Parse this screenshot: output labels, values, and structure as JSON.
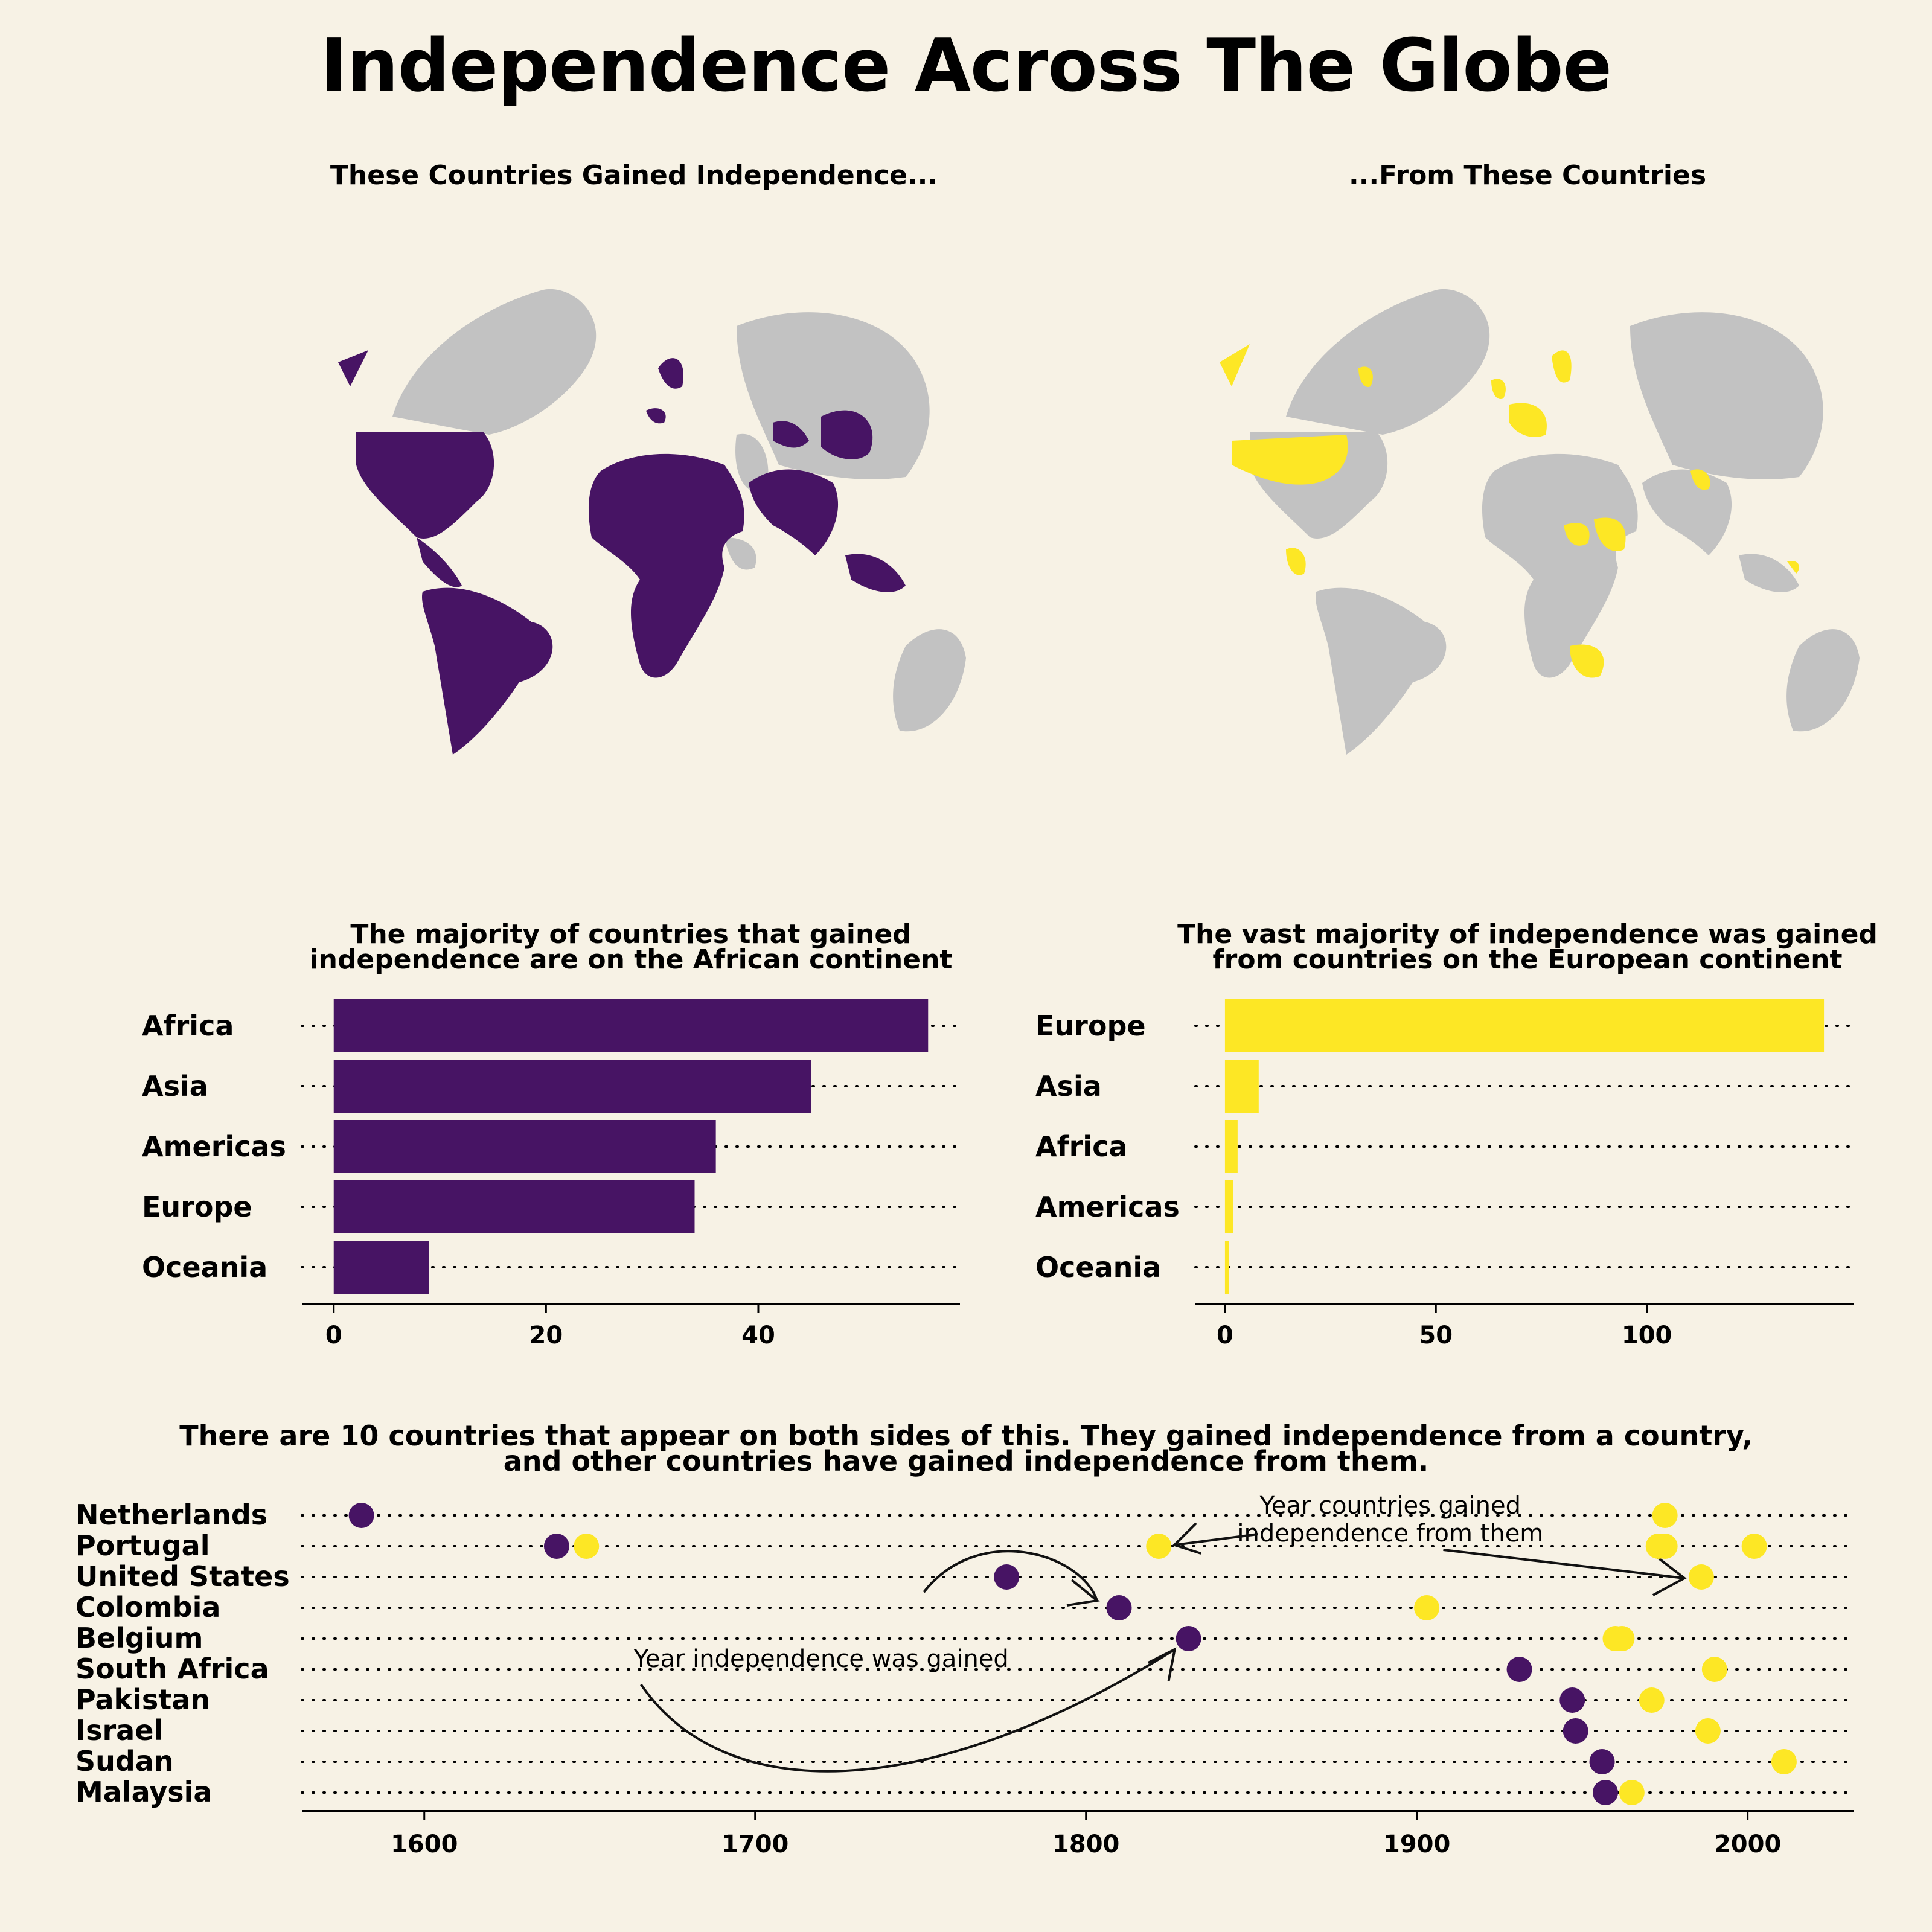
{
  "title": "Independence Across The Globe",
  "colors": {
    "background": "#f7f2e5",
    "purple": "#471464",
    "yellow": "#fde725",
    "gray_land": "#c2c2c2",
    "axis": "#000000"
  },
  "maps": {
    "left_title": "These Countries Gained Independence...",
    "right_title": "...From These Countries"
  },
  "chart_data": [
    {
      "type": "bar",
      "orientation": "horizontal",
      "title": "The majority of countries that gained independence are on the African continent",
      "categories": [
        "Africa",
        "Asia",
        "Americas",
        "Europe",
        "Oceania"
      ],
      "values": [
        56,
        45,
        36,
        34,
        9
      ],
      "xticks": [
        "0",
        "20",
        "40"
      ],
      "tick_values": [
        0,
        20,
        40
      ],
      "xlim": [
        -3,
        59
      ],
      "color": "#471464",
      "grid": "dotted"
    },
    {
      "type": "bar",
      "orientation": "horizontal",
      "title": "The vast majority of independence was gained from countries on the European continent",
      "categories": [
        "Europe",
        "Asia",
        "Africa",
        "Americas",
        "Oceania"
      ],
      "values": [
        142,
        8,
        3,
        2,
        1
      ],
      "xticks": [
        "0",
        "50",
        "100"
      ],
      "tick_values": [
        0,
        50,
        100
      ],
      "xlim": [
        -7,
        149
      ],
      "color": "#fde725",
      "grid": "dotted"
    },
    {
      "type": "scatter",
      "title": "There are 10 countries that appear on both sides of this. They gained independence from a country, and other countries have gained independence from them.",
      "countries": [
        "Netherlands",
        "Portugal",
        "United States",
        "Colombia",
        "Belgium",
        "South Africa",
        "Pakistan",
        "Israel",
        "Sudan",
        "Malaysia"
      ],
      "independence_year": [
        1581,
        1640,
        1776,
        1810,
        1831,
        1931,
        1947,
        1948,
        1956,
        1957
      ],
      "independence_from_them_years": [
        [
          1975
        ],
        [
          1649,
          1822,
          1973,
          1975,
          2002
        ],
        [
          1986
        ],
        [
          1903
        ],
        [
          1960,
          1962
        ],
        [
          1990
        ],
        [
          1971
        ],
        [
          1988
        ],
        [
          2011
        ],
        [
          1965
        ]
      ],
      "xticks": [
        "1600",
        "1700",
        "1800",
        "1900",
        "2000"
      ],
      "tick_values": [
        1600,
        1700,
        1800,
        1900,
        2000
      ],
      "xlim": [
        1563,
        2032
      ],
      "series": [
        {
          "name": "Year independence was gained",
          "color": "#471464"
        },
        {
          "name": "Year countries gained independence from them",
          "color": "#fde725"
        }
      ]
    }
  ]
}
